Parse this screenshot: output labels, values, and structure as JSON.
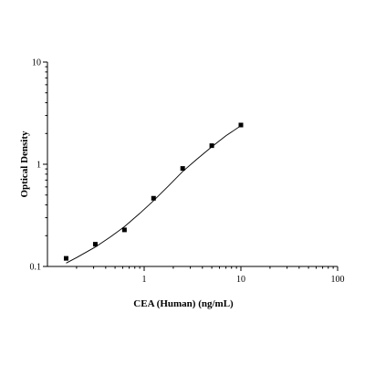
{
  "chart_data": {
    "type": "scatter",
    "title": "",
    "xlabel": "CEA (Human) (ng/mL)",
    "ylabel": "Optical Density",
    "x_scale": "log",
    "y_scale": "log",
    "xlim": [
      0.1,
      100
    ],
    "ylim": [
      0.1,
      10
    ],
    "x_ticks": [
      {
        "value": 1,
        "label": "1"
      },
      {
        "value": 10,
        "label": "10"
      },
      {
        "value": 100,
        "label": "100"
      }
    ],
    "y_ticks": [
      {
        "value": 0.1,
        "label": "0.1"
      },
      {
        "value": 1,
        "label": "1"
      },
      {
        "value": 10,
        "label": "10"
      }
    ],
    "grid": false,
    "series": [
      {
        "marker": "square",
        "points": [
          {
            "x": 0.156,
            "y": 0.12
          },
          {
            "x": 0.3125,
            "y": 0.165
          },
          {
            "x": 0.625,
            "y": 0.228
          },
          {
            "x": 1.25,
            "y": 0.465
          },
          {
            "x": 2.5,
            "y": 0.91
          },
          {
            "x": 5,
            "y": 1.52
          },
          {
            "x": 10,
            "y": 2.42
          }
        ],
        "fit_curve": [
          {
            "x": 0.156,
            "y": 0.108
          },
          {
            "x": 0.2,
            "y": 0.122
          },
          {
            "x": 0.3125,
            "y": 0.155
          },
          {
            "x": 0.45,
            "y": 0.195
          },
          {
            "x": 0.625,
            "y": 0.245
          },
          {
            "x": 0.9,
            "y": 0.33
          },
          {
            "x": 1.25,
            "y": 0.44
          },
          {
            "x": 1.8,
            "y": 0.62
          },
          {
            "x": 2.5,
            "y": 0.85
          },
          {
            "x": 3.5,
            "y": 1.12
          },
          {
            "x": 5,
            "y": 1.48
          },
          {
            "x": 7,
            "y": 1.9
          },
          {
            "x": 10,
            "y": 2.38
          }
        ]
      }
    ]
  },
  "colors": {
    "ink": "#000000",
    "background": "#ffffff"
  }
}
